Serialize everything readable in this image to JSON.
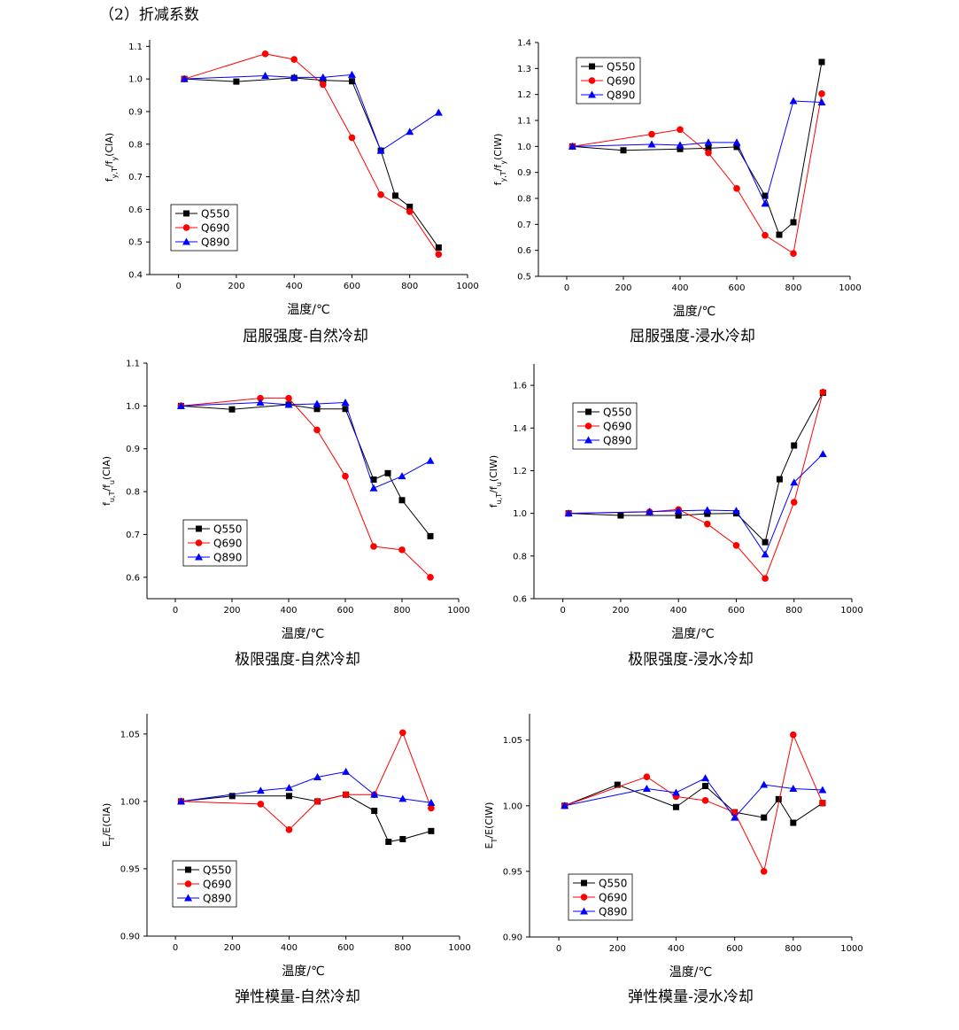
{
  "header": "（2）折减系数",
  "series_styles": [
    {
      "name": "Q550",
      "color": "#000000",
      "marker": "square"
    },
    {
      "name": "Q690",
      "color": "#ff0000",
      "marker": "circle"
    },
    {
      "name": "Q890",
      "color": "#0000ff",
      "marker": "triangle"
    }
  ],
  "chart_data": [
    {
      "type": "line",
      "caption": "屈服强度-自然冷却",
      "xlabel": "温度/℃",
      "ylabel": "f_y,T/f_y(CIA)",
      "xlim": [
        -100,
        1000
      ],
      "xticks": [
        0,
        200,
        400,
        600,
        800,
        1000
      ],
      "ylim": [
        0.4,
        1.12
      ],
      "yticks": [
        0.4,
        0.5,
        0.6,
        0.7,
        0.8,
        0.9,
        1.0,
        1.1
      ],
      "ytick_labels": [
        "0.4",
        "0.5",
        "0.6",
        "0.7",
        "0.8",
        "0.9",
        "1.0",
        "1.1"
      ],
      "legend": "lower-left",
      "series": [
        {
          "name": "Q550",
          "x": [
            20,
            200,
            400,
            500,
            600,
            700,
            750,
            800,
            900
          ],
          "y": [
            1.0,
            0.992,
            1.003,
            0.996,
            0.993,
            0.78,
            0.642,
            0.608,
            0.483
          ]
        },
        {
          "name": "Q690",
          "x": [
            20,
            300,
            400,
            500,
            600,
            700,
            800,
            900
          ],
          "y": [
            1.0,
            1.077,
            1.06,
            0.983,
            0.82,
            0.645,
            0.593,
            0.462
          ]
        },
        {
          "name": "Q890",
          "x": [
            20,
            300,
            400,
            500,
            600,
            700,
            800,
            900
          ],
          "y": [
            1.0,
            1.01,
            1.005,
            1.005,
            1.013,
            0.78,
            0.838,
            0.897
          ]
        }
      ]
    },
    {
      "type": "line",
      "caption": "屈服强度-浸水冷却",
      "xlabel": "温度/℃",
      "ylabel": "f_y,T/f_y(CIW)",
      "xlim": [
        -100,
        1000
      ],
      "xticks": [
        0,
        200,
        400,
        600,
        800,
        1000
      ],
      "ylim": [
        0.5,
        1.4
      ],
      "yticks": [
        0.5,
        0.6,
        0.7,
        0.8,
        0.9,
        1.0,
        1.1,
        1.2,
        1.3,
        1.4
      ],
      "ytick_labels": [
        "0.5",
        "0.6",
        "0.7",
        "0.8",
        "0.9",
        "1.0",
        "1.1",
        "1.2",
        "1.3",
        "1.4"
      ],
      "legend": "top-left",
      "series": [
        {
          "name": "Q550",
          "x": [
            20,
            200,
            400,
            500,
            600,
            700,
            750,
            800,
            900
          ],
          "y": [
            1.0,
            0.985,
            0.99,
            0.993,
            0.998,
            0.81,
            0.66,
            0.708,
            1.325
          ]
        },
        {
          "name": "Q690",
          "x": [
            20,
            300,
            400,
            500,
            600,
            700,
            800,
            900
          ],
          "y": [
            1.0,
            1.047,
            1.065,
            0.975,
            0.838,
            0.658,
            0.588,
            1.203
          ]
        },
        {
          "name": "Q890",
          "x": [
            20,
            300,
            400,
            500,
            600,
            700,
            800,
            900
          ],
          "y": [
            1.0,
            1.008,
            1.005,
            1.015,
            1.015,
            0.78,
            1.175,
            1.17
          ]
        }
      ]
    },
    {
      "type": "line",
      "caption": "极限强度-自然冷却",
      "xlabel": "温度/℃",
      "ylabel": "f_u,T/f_u(CIA)",
      "xlim": [
        -100,
        1000
      ],
      "xticks": [
        0,
        200,
        400,
        600,
        800,
        1000
      ],
      "ylim": [
        0.55,
        1.1
      ],
      "yticks": [
        0.6,
        0.7,
        0.8,
        0.9,
        1.0,
        1.1
      ],
      "ytick_labels": [
        "0.6",
        "0.7",
        "0.8",
        "0.9",
        "1.0",
        "1.1"
      ],
      "legend": "lower-left",
      "series": [
        {
          "name": "Q550",
          "x": [
            20,
            200,
            400,
            500,
            600,
            700,
            750,
            800,
            900
          ],
          "y": [
            1.0,
            0.992,
            1.003,
            0.993,
            0.993,
            0.828,
            0.843,
            0.78,
            0.696
          ]
        },
        {
          "name": "Q690",
          "x": [
            20,
            300,
            400,
            500,
            600,
            700,
            800,
            900
          ],
          "y": [
            1.0,
            1.018,
            1.018,
            0.944,
            0.836,
            0.672,
            0.664,
            0.6
          ]
        },
        {
          "name": "Q890",
          "x": [
            20,
            300,
            400,
            500,
            600,
            700,
            800,
            900
          ],
          "y": [
            1.0,
            1.008,
            1.003,
            1.005,
            1.008,
            0.808,
            0.836,
            0.872
          ]
        }
      ]
    },
    {
      "type": "line",
      "caption": "极限强度-浸水冷却",
      "xlabel": "温度/℃",
      "ylabel": "f_u,T/f_u(CIW)",
      "xlim": [
        -100,
        1000
      ],
      "xticks": [
        0,
        200,
        400,
        600,
        800,
        1000
      ],
      "ylim": [
        0.6,
        1.7
      ],
      "yticks": [
        0.6,
        0.8,
        1.0,
        1.2,
        1.4,
        1.6
      ],
      "ytick_labels": [
        "0.6",
        "0.8",
        "1.0",
        "1.2",
        "1.4",
        "1.6"
      ],
      "legend": "top-left",
      "series": [
        {
          "name": "Q550",
          "x": [
            20,
            200,
            400,
            500,
            600,
            700,
            750,
            800,
            900
          ],
          "y": [
            1.0,
            0.99,
            0.99,
            0.998,
            1.0,
            0.865,
            1.16,
            1.318,
            1.565
          ]
        },
        {
          "name": "Q690",
          "x": [
            20,
            300,
            400,
            500,
            600,
            700,
            800,
            900
          ],
          "y": [
            1.0,
            1.007,
            1.018,
            0.95,
            0.85,
            0.695,
            1.052,
            1.568
          ]
        },
        {
          "name": "Q890",
          "x": [
            20,
            300,
            400,
            500,
            600,
            700,
            800,
            900
          ],
          "y": [
            1.0,
            1.008,
            1.012,
            1.015,
            1.012,
            0.808,
            1.145,
            1.278
          ]
        }
      ]
    },
    {
      "type": "line",
      "caption": "弹性模量-自然冷却",
      "xlabel": "温度/℃",
      "ylabel": "E_T/E(CIA)",
      "xlim": [
        -100,
        1000
      ],
      "xticks": [
        0,
        200,
        400,
        600,
        800,
        1000
      ],
      "ylim": [
        0.9,
        1.065
      ],
      "yticks": [
        0.9,
        0.95,
        1.0,
        1.05
      ],
      "ytick_labels": [
        "0.90",
        "0.95",
        "1.00",
        "1.05"
      ],
      "legend": "lower-left",
      "series": [
        {
          "name": "Q550",
          "x": [
            20,
            200,
            400,
            500,
            600,
            700,
            750,
            800,
            900
          ],
          "y": [
            1.0,
            1.004,
            1.004,
            1.0,
            1.005,
            0.993,
            0.97,
            0.972,
            0.978
          ]
        },
        {
          "name": "Q690",
          "x": [
            20,
            300,
            400,
            500,
            600,
            700,
            800,
            900
          ],
          "y": [
            1.0,
            0.998,
            0.979,
            1.0,
            1.005,
            1.005,
            1.051,
            0.995
          ]
        },
        {
          "name": "Q890",
          "x": [
            20,
            300,
            400,
            500,
            600,
            700,
            800,
            900
          ],
          "y": [
            1.0,
            1.008,
            1.01,
            1.018,
            1.022,
            1.005,
            1.002,
            0.999
          ]
        }
      ]
    },
    {
      "type": "line",
      "caption": "弹性模量-浸水冷却",
      "xlabel": "温度/℃",
      "ylabel": "E_T/E(CIW)",
      "xlim": [
        -100,
        1000
      ],
      "xticks": [
        0,
        200,
        400,
        600,
        800,
        1000
      ],
      "ylim": [
        0.9,
        1.07
      ],
      "yticks": [
        0.9,
        0.95,
        1.0,
        1.05
      ],
      "ytick_labels": [
        "0.90",
        "0.95",
        "1.00",
        "1.05"
      ],
      "legend": "lower-left",
      "series": [
        {
          "name": "Q550",
          "x": [
            20,
            200,
            400,
            500,
            600,
            700,
            750,
            800,
            900
          ],
          "y": [
            1.0,
            1.016,
            0.999,
            1.015,
            0.995,
            0.991,
            1.005,
            0.987,
            1.002
          ]
        },
        {
          "name": "Q690",
          "x": [
            20,
            300,
            400,
            500,
            600,
            700,
            800,
            900
          ],
          "y": [
            1.0,
            1.022,
            1.007,
            1.004,
            0.995,
            0.95,
            1.054,
            1.002
          ]
        },
        {
          "name": "Q890",
          "x": [
            20,
            300,
            400,
            500,
            600,
            700,
            800,
            900
          ],
          "y": [
            1.0,
            1.013,
            1.01,
            1.021,
            0.991,
            1.016,
            1.013,
            1.012
          ]
        }
      ]
    }
  ]
}
